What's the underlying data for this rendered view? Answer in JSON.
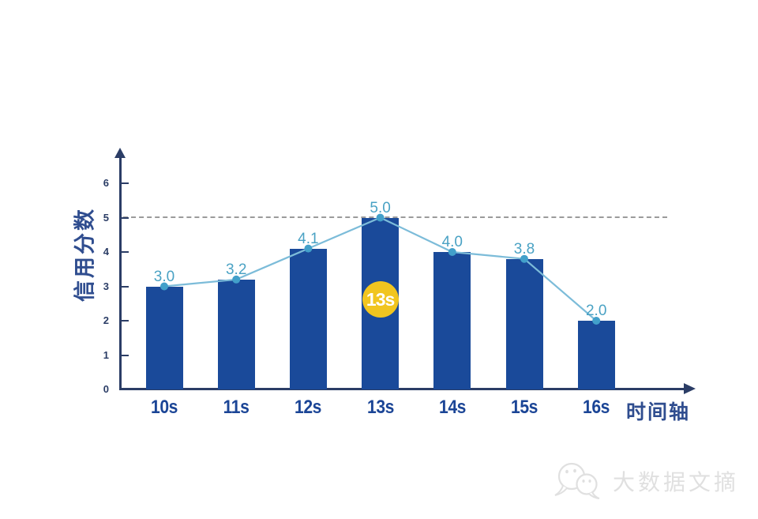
{
  "chart_data": {
    "type": "bar",
    "overlay": "line",
    "categories": [
      "10s",
      "11s",
      "12s",
      "13s",
      "14s",
      "15s",
      "16s"
    ],
    "values": [
      3.0,
      3.2,
      4.1,
      5.0,
      4.0,
      3.8,
      2.0
    ],
    "value_labels": [
      "3.0",
      "3.2",
      "4.1",
      "5.0",
      "4.0",
      "3.8",
      "2.0"
    ],
    "title": "",
    "xlabel": "时间轴",
    "ylabel": "信用分数",
    "ylim": [
      0,
      6
    ],
    "yticks": [
      "0",
      "1",
      "2",
      "3",
      "4",
      "5",
      "6"
    ],
    "grid": false,
    "legend": "none",
    "reference_line": {
      "value": 5,
      "style": "dashed"
    },
    "annotation": {
      "text": "13s",
      "category_index": 3
    }
  },
  "colors": {
    "bar": "#1a4a9a",
    "line": "#7cbcd9",
    "marker": "#42a0ca",
    "value_label": "#4aa2c4",
    "axis": "#2b3d66",
    "axis_title": "#2f4d8f",
    "x_label": "#1b4596",
    "reference": "#9b9b9b",
    "badge_bg": "#f1c51f",
    "badge_text": "#ffffff",
    "watermark": "#e0e0e0"
  },
  "watermark": {
    "text": "大数据文摘",
    "icon": "wechat-icon"
  }
}
